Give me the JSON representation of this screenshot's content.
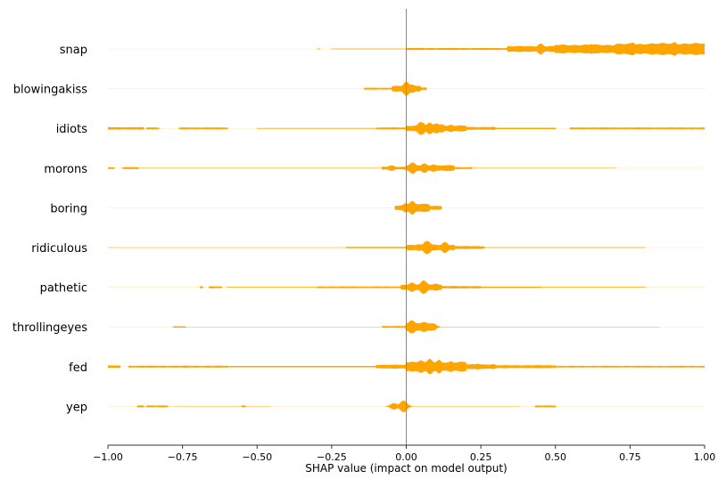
{
  "chart_data": {
    "type": "violin",
    "xlabel": "SHAP value (impact on model output)",
    "xlim": [
      -1.0,
      1.0
    ],
    "xticks": [
      -1.0,
      -0.75,
      -0.5,
      -0.25,
      0.0,
      0.25,
      0.5,
      0.75,
      1.0
    ],
    "xtick_labels": [
      "−1.00",
      "−0.75",
      "−0.50",
      "−0.25",
      "0.00",
      "0.25",
      "0.50",
      "0.75",
      "1.00"
    ],
    "zero_line": true,
    "color": "#ffa500",
    "features": [
      {
        "name": "snap",
        "range": [
          -1.0,
          1.0
        ],
        "peaks": [
          [
            0.45,
            12
          ],
          [
            0.62,
            11
          ],
          [
            0.76,
            14
          ],
          [
            0.9,
            15
          ],
          [
            0.97,
            12
          ]
        ],
        "bands": [
          [
            -0.3,
            -0.29,
            1
          ],
          [
            -0.25,
            0.0,
            0.8
          ],
          [
            0.0,
            0.34,
            2
          ],
          [
            0.34,
            0.5,
            6
          ],
          [
            0.5,
            0.7,
            9
          ],
          [
            0.7,
            0.8,
            11
          ],
          [
            0.8,
            1.0,
            12
          ]
        ]
      },
      {
        "name": "blowingakiss",
        "range": [
          -1.0,
          1.0
        ],
        "peaks": [
          [
            0.0,
            14
          ],
          [
            0.02,
            10
          ]
        ],
        "bands": [
          [
            -0.14,
            -0.05,
            2
          ],
          [
            -0.05,
            0.05,
            6
          ],
          [
            0.05,
            0.07,
            3
          ]
        ]
      },
      {
        "name": "idiots",
        "range": [
          -1.0,
          1.0
        ],
        "peaks": [
          [
            0.05,
            15
          ],
          [
            0.08,
            12
          ],
          [
            0.1,
            11
          ],
          [
            0.12,
            10
          ],
          [
            0.15,
            8
          ],
          [
            0.18,
            6
          ]
        ],
        "bands": [
          [
            -1.0,
            -0.88,
            2.5
          ],
          [
            -0.87,
            -0.83,
            2
          ],
          [
            -0.76,
            -0.6,
            2
          ],
          [
            -0.5,
            -0.1,
            0.8
          ],
          [
            -0.1,
            0.0,
            2
          ],
          [
            0.0,
            0.2,
            6
          ],
          [
            0.2,
            0.3,
            3
          ],
          [
            0.3,
            0.5,
            1.5
          ],
          [
            0.55,
            1.0,
            2
          ]
        ]
      },
      {
        "name": "morons",
        "range": [
          -1.0,
          1.0
        ],
        "peaks": [
          [
            -0.05,
            6
          ],
          [
            0.02,
            12
          ],
          [
            0.06,
            10
          ],
          [
            0.09,
            9
          ],
          [
            0.14,
            5
          ]
        ],
        "bands": [
          [
            -1.0,
            -0.98,
            2
          ],
          [
            -0.95,
            -0.9,
            2
          ],
          [
            -0.9,
            -0.08,
            0.6
          ],
          [
            -0.08,
            0.0,
            3
          ],
          [
            0.0,
            0.16,
            6
          ],
          [
            0.16,
            0.22,
            2
          ],
          [
            0.22,
            0.7,
            0.6
          ]
        ]
      },
      {
        "name": "boring",
        "range": [
          -1.0,
          1.0
        ],
        "peaks": [
          [
            0.0,
            10
          ],
          [
            0.02,
            14
          ],
          [
            0.05,
            8
          ]
        ],
        "bands": [
          [
            -0.04,
            0.0,
            5
          ],
          [
            0.0,
            0.08,
            9
          ],
          [
            0.08,
            0.12,
            4
          ]
        ]
      },
      {
        "name": "ridiculous",
        "range": [
          -1.0,
          1.0
        ],
        "peaks": [
          [
            0.07,
            15
          ],
          [
            0.13,
            12
          ],
          [
            0.04,
            8
          ]
        ],
        "bands": [
          [
            -1.0,
            -0.2,
            0.5
          ],
          [
            -0.2,
            0.0,
            1.5
          ],
          [
            0.0,
            0.16,
            6
          ],
          [
            0.16,
            0.26,
            3
          ],
          [
            0.26,
            0.8,
            0.8
          ]
        ]
      },
      {
        "name": "pathetic",
        "range": [
          -1.0,
          1.0
        ],
        "peaks": [
          [
            0.02,
            10
          ],
          [
            0.06,
            15
          ],
          [
            0.1,
            9
          ]
        ],
        "bands": [
          [
            -0.69,
            -0.68,
            2
          ],
          [
            -0.66,
            -0.62,
            2
          ],
          [
            -0.6,
            -0.3,
            0.8
          ],
          [
            -0.3,
            -0.02,
            1.8
          ],
          [
            -0.02,
            0.12,
            6
          ],
          [
            0.12,
            0.25,
            2.5
          ],
          [
            0.25,
            0.45,
            1.2
          ],
          [
            0.45,
            0.8,
            0.8
          ]
        ]
      },
      {
        "name": "throllingeyes",
        "range": [
          -1.0,
          1.0
        ],
        "peaks": [
          [
            0.02,
            15
          ],
          [
            0.06,
            13
          ],
          [
            0.09,
            6
          ]
        ],
        "bands": [
          [
            -0.78,
            -0.74,
            1.5
          ],
          [
            -0.74,
            -0.08,
            0.4
          ],
          [
            -0.08,
            0.0,
            2
          ],
          [
            0.0,
            0.1,
            8
          ],
          [
            0.1,
            0.85,
            0.5
          ]
        ]
      },
      {
        "name": "fed",
        "range": [
          -1.0,
          1.0
        ],
        "peaks": [
          [
            0.02,
            13
          ],
          [
            0.05,
            15
          ],
          [
            0.08,
            16
          ],
          [
            0.11,
            14
          ],
          [
            0.15,
            12
          ],
          [
            0.18,
            10
          ],
          [
            0.24,
            7
          ]
        ],
        "bands": [
          [
            -1.0,
            -0.96,
            2.5
          ],
          [
            -0.93,
            -0.6,
            2
          ],
          [
            -0.6,
            -0.1,
            1.5
          ],
          [
            -0.1,
            0.0,
            4
          ],
          [
            0.0,
            0.2,
            10
          ],
          [
            0.2,
            0.3,
            5
          ],
          [
            0.3,
            0.5,
            3
          ],
          [
            0.5,
            1.0,
            1.8
          ]
        ]
      },
      {
        "name": "yep",
        "range": [
          -1.0,
          1.0
        ],
        "peaks": [
          [
            -0.04,
            7
          ],
          [
            -0.01,
            13
          ]
        ],
        "bands": [
          [
            -0.9,
            -0.88,
            2
          ],
          [
            -0.87,
            -0.8,
            2
          ],
          [
            -0.78,
            -0.45,
            0.4
          ],
          [
            -0.55,
            -0.54,
            2
          ],
          [
            -0.05,
            0.0,
            4
          ],
          [
            0.0,
            0.02,
            2
          ],
          [
            0.0,
            0.38,
            0.4
          ],
          [
            0.43,
            0.5,
            2
          ]
        ]
      }
    ]
  }
}
